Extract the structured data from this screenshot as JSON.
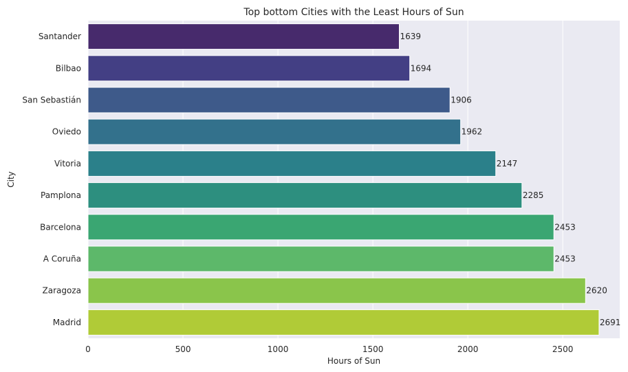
{
  "chart_data": {
    "type": "bar",
    "orientation": "horizontal",
    "title": "Top bottom Cities with the Least Hours of Sun",
    "xlabel": "Hours of Sun",
    "ylabel": "City",
    "xlim": [
      0,
      2800
    ],
    "xticks": [
      0,
      500,
      1000,
      1500,
      2000,
      2500
    ],
    "grid": true,
    "categories": [
      "Santander",
      "Bilbao",
      "San Sebastián",
      "Oviedo",
      "Vitoria",
      "Pamplona",
      "Barcelona",
      "A Coruña",
      "Zaragoza",
      "Madrid"
    ],
    "values": [
      1639,
      1694,
      1906,
      1962,
      2147,
      2285,
      2453,
      2453,
      2620,
      2691
    ],
    "colors": [
      "#472a6c",
      "#433f84",
      "#3e5a8a",
      "#33718c",
      "#2b808a",
      "#2d8f7f",
      "#3aa672",
      "#5db86a",
      "#8ac54b",
      "#b0cb37"
    ],
    "background": "#eaeaf2"
  }
}
